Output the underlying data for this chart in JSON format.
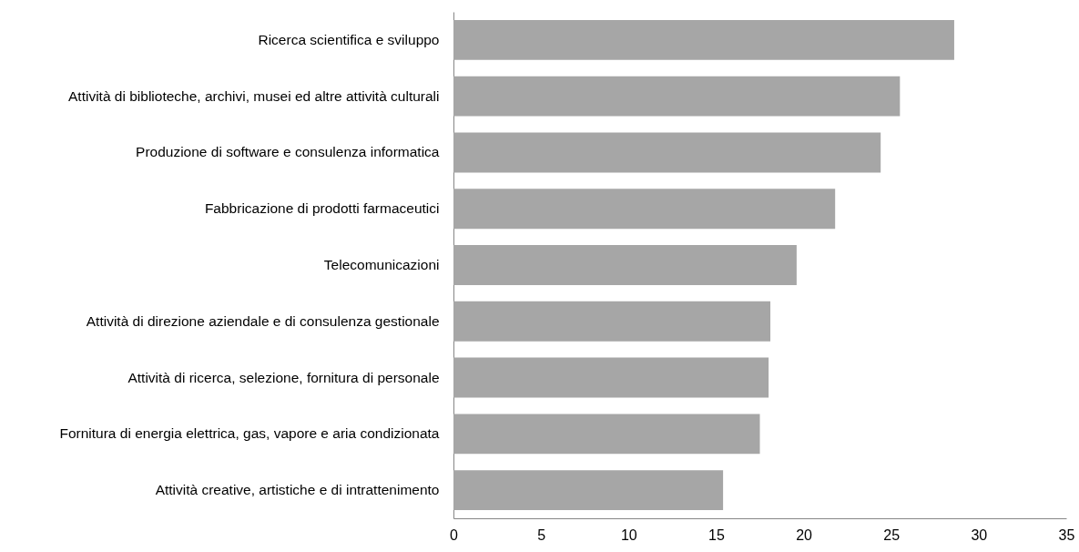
{
  "chart_data": {
    "type": "bar",
    "orientation": "horizontal",
    "categories": [
      "Ricerca scientifica e sviluppo",
      "Attività di biblioteche, archivi, musei ed altre attività culturali",
      "Produzione di software e consulenza informatica",
      "Fabbricazione di prodotti farmaceutici",
      "Telecomunicazioni",
      "Attività di direzione aziendale e di consulenza gestionale",
      "Attività di ricerca, selezione, fornitura di personale",
      "Fornitura di energia elettrica, gas, vapore e aria condizionata",
      "Attività creative, artistiche e di intrattenimento"
    ],
    "values": [
      28.6,
      25.5,
      24.4,
      21.8,
      19.6,
      18.1,
      18.0,
      17.5,
      15.4
    ],
    "color": "#a6a6a6",
    "xlim": [
      0,
      35
    ],
    "xticks": [
      0,
      5,
      10,
      15,
      20,
      25,
      30,
      35
    ]
  }
}
